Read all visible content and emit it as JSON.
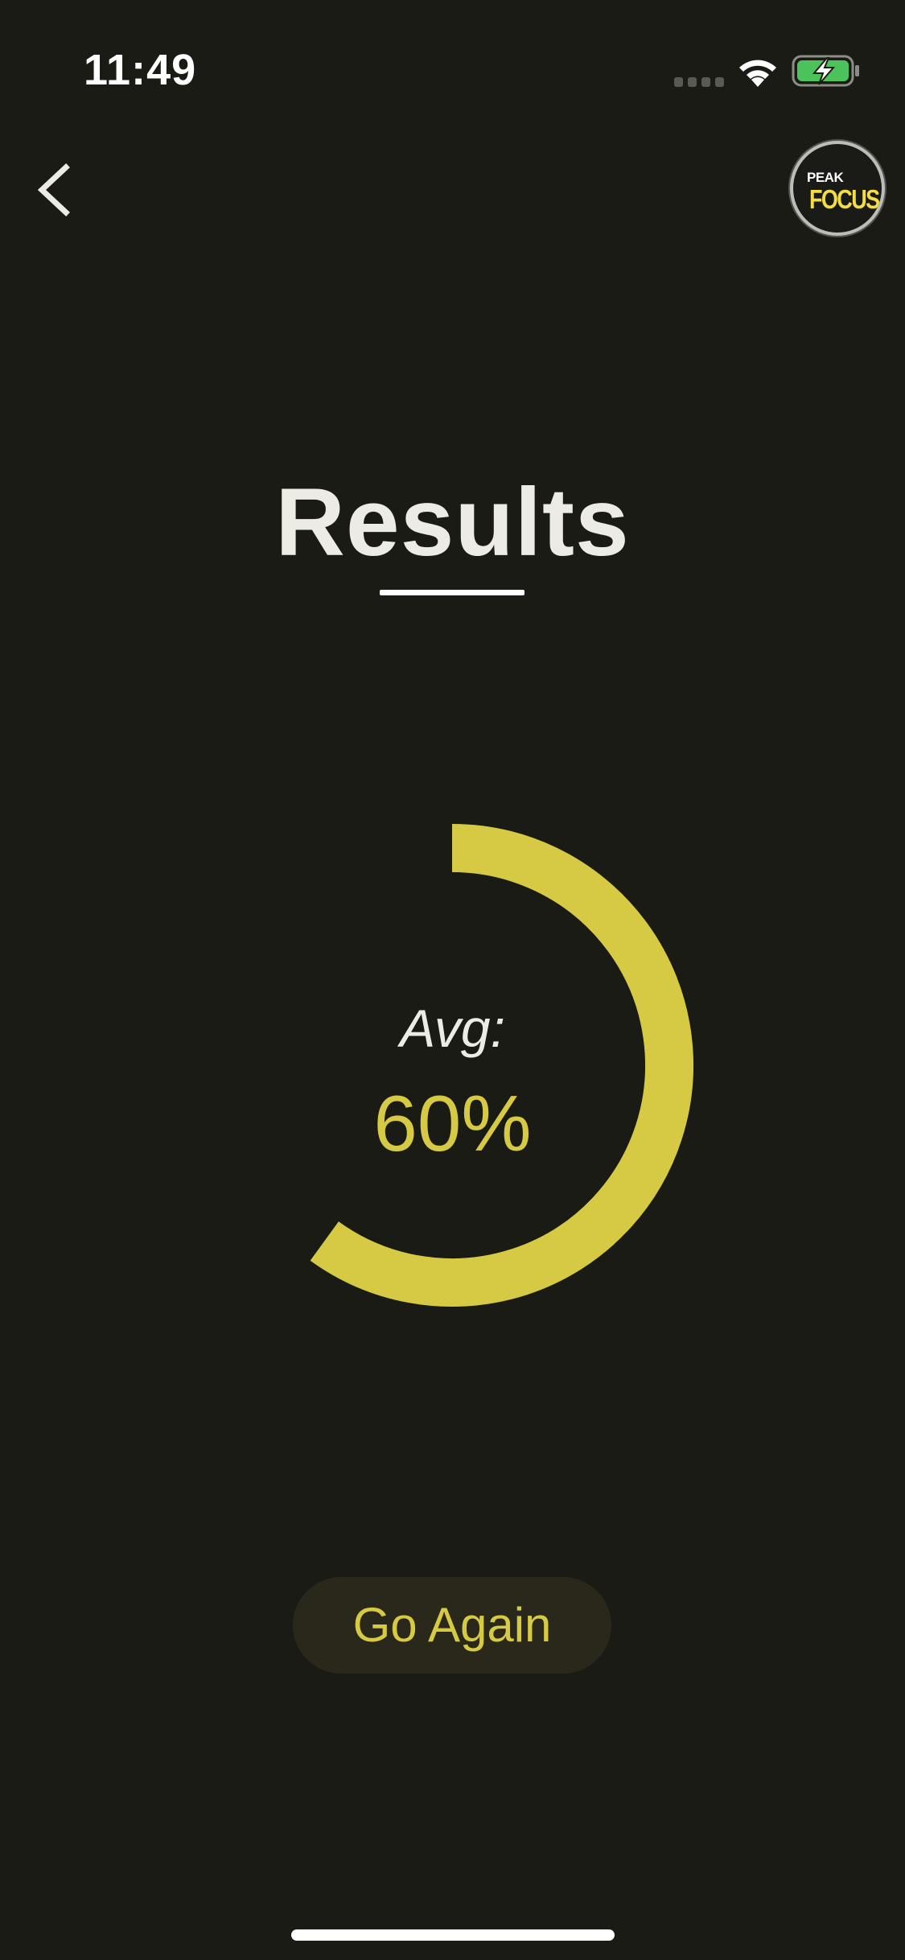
{
  "status_bar": {
    "time": "11:49",
    "icons": [
      "cellular-signal-icon",
      "wifi-icon",
      "battery-charging-icon"
    ]
  },
  "header": {
    "back_icon": "chevron-left-icon",
    "logo": {
      "line1": "PEAK",
      "line2": "FOCUS"
    }
  },
  "main": {
    "title": "Results",
    "avg_label": "Avg:",
    "avg_value": "60%",
    "progress_fraction": 0.6,
    "button_label": "Go Again"
  },
  "colors": {
    "background": "#1b1b16",
    "accent": "#d6ca45",
    "text": "#ecebe4",
    "battery_green": "#4cc35a",
    "button_bg": "#29281b"
  }
}
